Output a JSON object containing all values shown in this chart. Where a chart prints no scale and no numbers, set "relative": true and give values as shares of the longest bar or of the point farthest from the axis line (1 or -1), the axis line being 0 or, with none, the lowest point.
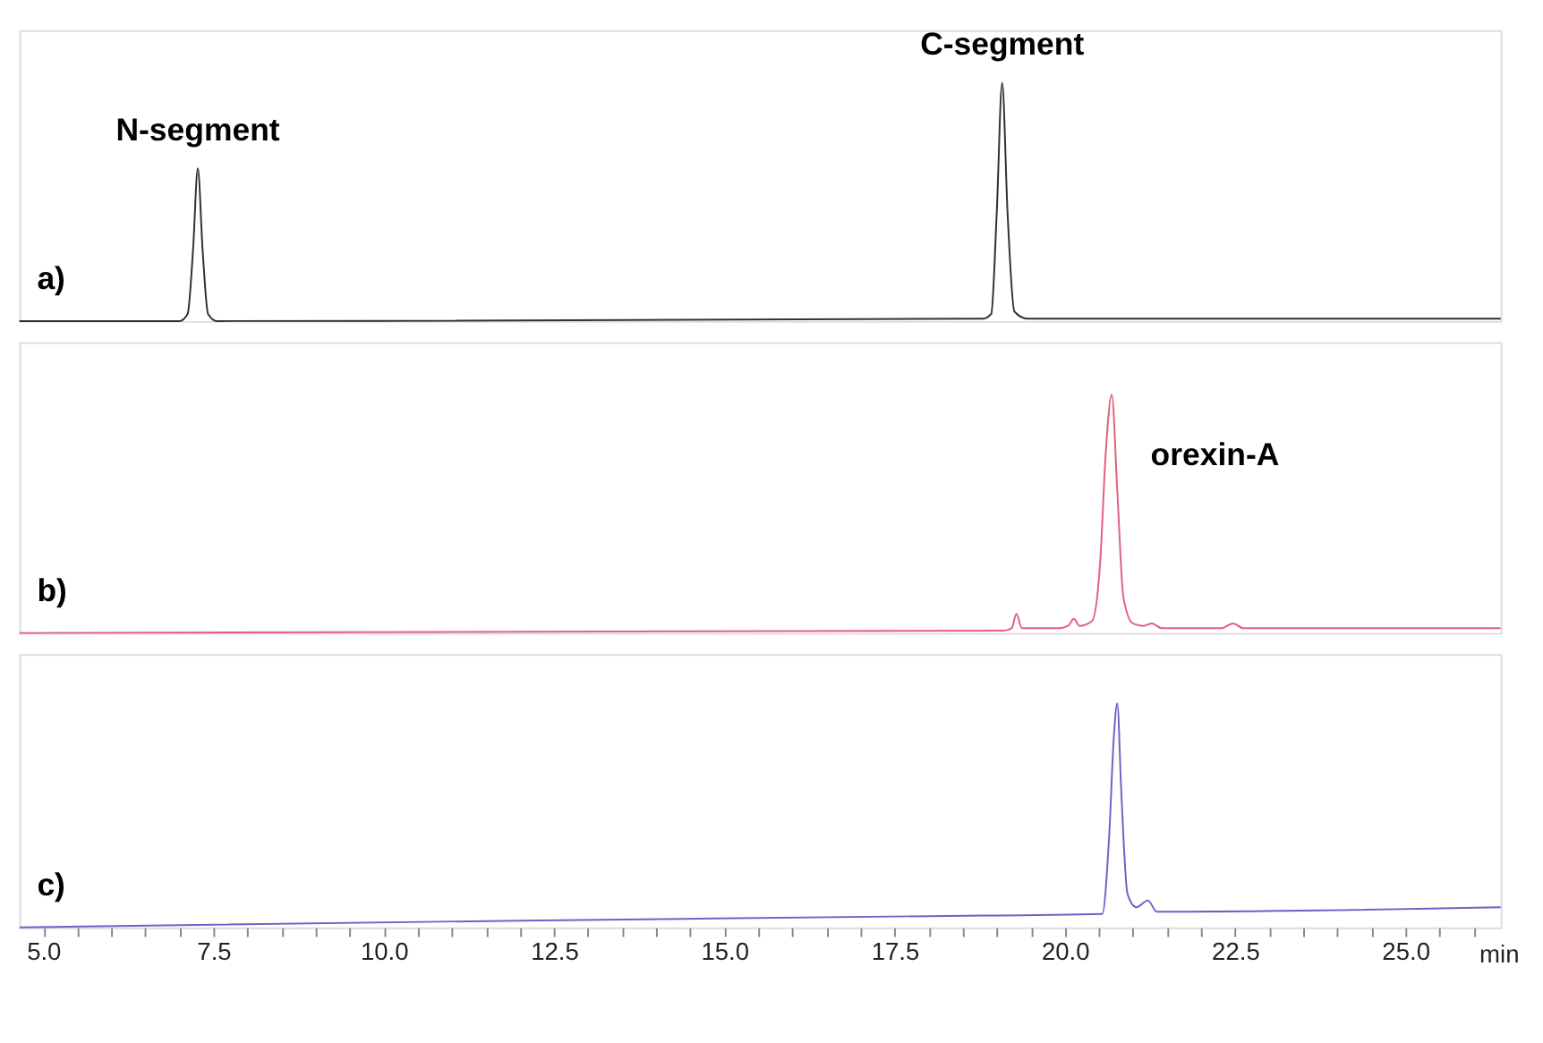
{
  "chart_data": [
    {
      "type": "line",
      "relative": true,
      "xlim": [
        4.65,
        26.4
      ],
      "tick_labels": false,
      "annotations": [
        "a)",
        {
          "text": "N-segment",
          "x": 7.27,
          "y": 0.64
        },
        {
          "text": "C-segment",
          "x": 19.08,
          "y": 1.0
        }
      ],
      "series": [
        {
          "color": "#303030",
          "x": [
            4.65,
            7.0,
            7.12,
            7.2,
            7.27,
            7.34,
            7.42,
            7.55,
            18.8,
            18.92,
            19.0,
            19.08,
            19.16,
            19.26,
            19.45,
            26.4
          ],
          "values": [
            0.0,
            0.0,
            0.03,
            0.3,
            0.64,
            0.3,
            0.03,
            0.0,
            0.01,
            0.03,
            0.45,
            1.0,
            0.45,
            0.04,
            0.01,
            0.01
          ]
        }
      ]
    },
    {
      "type": "line",
      "relative": true,
      "xlim": [
        4.65,
        26.4
      ],
      "tick_labels": false,
      "annotations": [
        "b)",
        {
          "text": "orexin-A",
          "x": 20.69,
          "y": 1.0
        }
      ],
      "series": [
        {
          "color": "#e0607a",
          "x": [
            4.65,
            19.1,
            19.22,
            19.29,
            19.37,
            19.9,
            20.05,
            20.13,
            20.22,
            20.4,
            20.52,
            20.6,
            20.69,
            20.77,
            20.86,
            21.0,
            21.15,
            21.28,
            21.42,
            22.3,
            22.47,
            22.62,
            26.4
          ],
          "values": [
            0.0,
            0.01,
            0.02,
            0.08,
            0.02,
            0.02,
            0.03,
            0.06,
            0.03,
            0.05,
            0.3,
            0.75,
            1.0,
            0.6,
            0.15,
            0.04,
            0.03,
            0.04,
            0.02,
            0.02,
            0.04,
            0.02,
            0.02
          ]
        }
      ]
    },
    {
      "type": "line",
      "relative": true,
      "xlim": [
        4.65,
        26.4
      ],
      "tick_labels": "x",
      "xlabel": "min",
      "annotations": [
        "c)"
      ],
      "xticks": [
        {
          "value": 5.0,
          "label": "5.0"
        },
        {
          "value": 5.5,
          "label": null
        },
        {
          "value": 6.0,
          "label": null
        },
        {
          "value": 6.5,
          "label": null
        },
        {
          "value": 7.0,
          "label": null
        },
        {
          "value": 7.5,
          "label": "7.5"
        },
        {
          "value": 8.0,
          "label": null
        },
        {
          "value": 8.5,
          "label": null
        },
        {
          "value": 9.0,
          "label": null
        },
        {
          "value": 9.5,
          "label": null
        },
        {
          "value": 10.0,
          "label": "10.0"
        },
        {
          "value": 10.5,
          "label": null
        },
        {
          "value": 11.0,
          "label": null
        },
        {
          "value": 11.5,
          "label": null
        },
        {
          "value": 12.0,
          "label": null
        },
        {
          "value": 12.5,
          "label": "12.5"
        },
        {
          "value": 13.0,
          "label": null
        },
        {
          "value": 13.5,
          "label": null
        },
        {
          "value": 14.0,
          "label": null
        },
        {
          "value": 14.5,
          "label": null
        },
        {
          "value": 15.0,
          "label": "15.0"
        },
        {
          "value": 15.5,
          "label": null
        },
        {
          "value": 16.0,
          "label": null
        },
        {
          "value": 16.5,
          "label": null
        },
        {
          "value": 17.0,
          "label": null
        },
        {
          "value": 17.5,
          "label": "17.5"
        },
        {
          "value": 18.0,
          "label": null
        },
        {
          "value": 18.5,
          "label": null
        },
        {
          "value": 19.0,
          "label": null
        },
        {
          "value": 19.5,
          "label": null
        },
        {
          "value": 20.0,
          "label": "20.0"
        },
        {
          "value": 20.5,
          "label": null
        },
        {
          "value": 21.0,
          "label": null
        },
        {
          "value": 21.5,
          "label": null
        },
        {
          "value": 22.0,
          "label": null
        },
        {
          "value": 22.5,
          "label": "22.5"
        },
        {
          "value": 23.0,
          "label": null
        },
        {
          "value": 23.5,
          "label": null
        },
        {
          "value": 24.0,
          "label": null
        },
        {
          "value": 24.5,
          "label": null
        },
        {
          "value": 25.0,
          "label": "25.0"
        },
        {
          "value": 25.5,
          "label": null
        },
        {
          "value": 26.0,
          "label": null
        }
      ],
      "series": [
        {
          "color": "#7060c8",
          "x": [
            4.65,
            12.0,
            18.0,
            20.55,
            20.65,
            20.72,
            20.77,
            20.83,
            20.92,
            21.05,
            21.22,
            21.35,
            21.5,
            26.4
          ],
          "values": [
            0.0,
            0.03,
            0.05,
            0.06,
            0.4,
            0.85,
            1.0,
            0.6,
            0.15,
            0.09,
            0.12,
            0.07,
            0.07,
            0.09
          ]
        }
      ]
    }
  ]
}
